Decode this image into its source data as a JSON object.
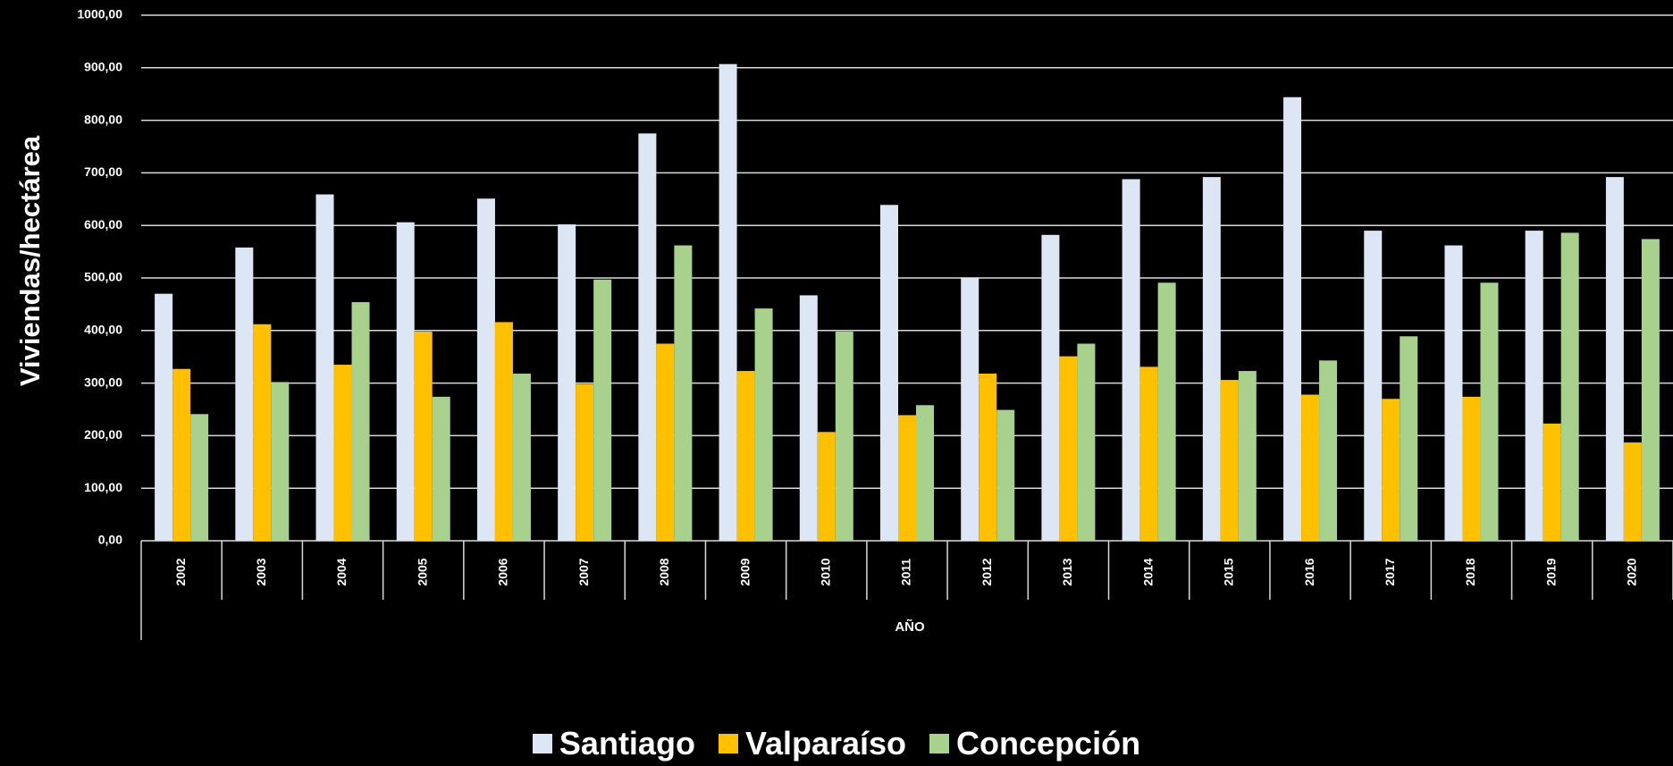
{
  "chart_data": {
    "type": "bar",
    "y_label": "Viviendas/hectárea",
    "x_label": "AÑO",
    "categories": [
      "2002",
      "2003",
      "2004",
      "2005",
      "2006",
      "2007",
      "2008",
      "2009",
      "2010",
      "2011",
      "2012",
      "2013",
      "2014",
      "2015",
      "2016",
      "2017",
      "2018",
      "2019",
      "2020"
    ],
    "series": [
      {
        "name": "Santiago",
        "color": "#dce6f5",
        "values": [
          470,
          558,
          659,
          606,
          651,
          602,
          775,
          907,
          467,
          639,
          501,
          582,
          688,
          692,
          844,
          590,
          562,
          590,
          692
        ]
      },
      {
        "name": "Valparaíso",
        "color": "#ffc000",
        "values": [
          327,
          412,
          335,
          398,
          416,
          298,
          375,
          323,
          207,
          239,
          318,
          351,
          331,
          306,
          278,
          270,
          274,
          223,
          187
        ]
      },
      {
        "name": "Concepción",
        "color": "#a9d18e",
        "values": [
          241,
          302,
          454,
          274,
          318,
          497,
          562,
          442,
          398,
          258,
          249,
          375,
          491,
          323,
          343,
          389,
          491,
          586,
          574
        ]
      }
    ],
    "ylim": [
      0,
      1000
    ],
    "yticks": [
      {
        "value": 0,
        "label": "0,00"
      },
      {
        "value": 100,
        "label": "100,00"
      },
      {
        "value": 200,
        "label": "200,00"
      },
      {
        "value": 300,
        "label": "300,00"
      },
      {
        "value": 400,
        "label": "400,00"
      },
      {
        "value": 500,
        "label": "500,00"
      },
      {
        "value": 600,
        "label": "600,00"
      },
      {
        "value": 700,
        "label": "700,00"
      },
      {
        "value": 800,
        "label": "800,00"
      },
      {
        "value": 900,
        "label": "900,00"
      },
      {
        "value": 1000,
        "label": "1000,00"
      }
    ],
    "grid": true,
    "legend": "bottom"
  }
}
